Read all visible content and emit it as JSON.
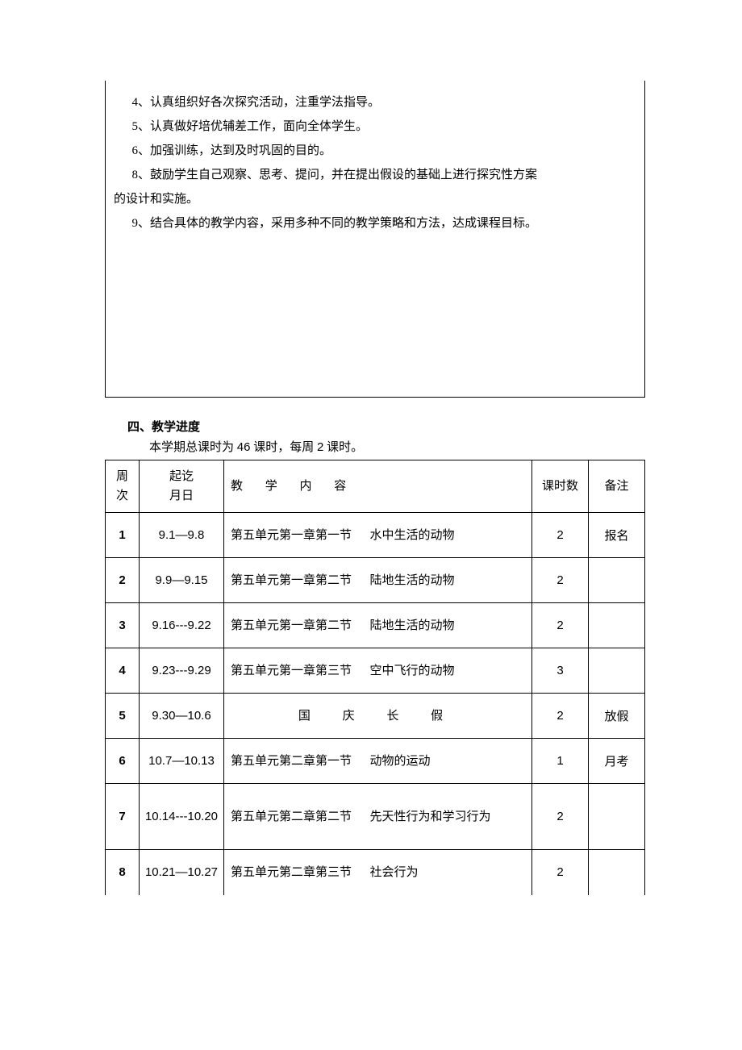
{
  "textbox": {
    "lines": [
      "4、认真组织好各次探究活动，注重学法指导。",
      "5、认真做好培优辅差工作，面向全体学生。",
      "6、加强训练，达到及时巩固的目的。",
      "8、鼓励学生自己观察、思考、提问，并在提出假设的基础上进行探究性方案",
      "9、结合具体的教学内容，采用多种不同的教学策略和方法，达成课程目标。"
    ],
    "line4_continuation": "的设计和实施。"
  },
  "section_heading": "四、教学进度",
  "intro_prefix": "本学期总课时为 ",
  "intro_num1": "46",
  "intro_mid": " 课时，每周 ",
  "intro_num2": "2",
  "intro_suffix": " 课时。",
  "table": {
    "headers": {
      "week_l1": "周",
      "week_l2": "次",
      "date_l1": "起讫",
      "date_l2": "月日",
      "content": "教 学 内 容",
      "hours": "课时数",
      "note": "备注"
    },
    "rows": [
      {
        "week": "1",
        "date": "9.1—9.8",
        "content_a": "第五单元第一章第一节",
        "content_b": "水中生活的动物",
        "hours": "2",
        "note": "报名",
        "tall": false
      },
      {
        "week": "2",
        "date": "9.9—9.15",
        "content_a": "第五单元第一章第二节",
        "content_b": "陆地生活的动物",
        "hours": "2",
        "note": "",
        "tall": false
      },
      {
        "week": "3",
        "date": "9.16---9.22",
        "content_a": "第五单元第一章第二节",
        "content_b": "陆地生活的动物",
        "hours": "2",
        "note": "",
        "tall": false
      },
      {
        "week": "4",
        "date": "9.23---9.29",
        "content_a": "第五单元第一章第三节",
        "content_b": "空中飞行的动物",
        "hours": "3",
        "note": "",
        "tall": false
      },
      {
        "week": "5",
        "date": "9.30—10.6",
        "content_holiday": "国 庆 长 假",
        "hours": "2",
        "note": "放假",
        "tall": false
      },
      {
        "week": "6",
        "date": "10.7—10.13",
        "content_a": "第五单元第二章第一节",
        "content_b": "动物的运动",
        "hours": "1",
        "note": "月考",
        "tall": false
      },
      {
        "week": "7",
        "date": "10.14---10.20",
        "content_a": "第五单元第二章第二节",
        "content_b": "先天性行为和学习行为",
        "hours": "2",
        "note": "",
        "tall": true
      },
      {
        "week": "8",
        "date": "10.21—10.27",
        "content_a": "第五单元第二章第三节",
        "content_b": "社会行为",
        "hours": "2",
        "note": "",
        "tall": false
      }
    ]
  }
}
